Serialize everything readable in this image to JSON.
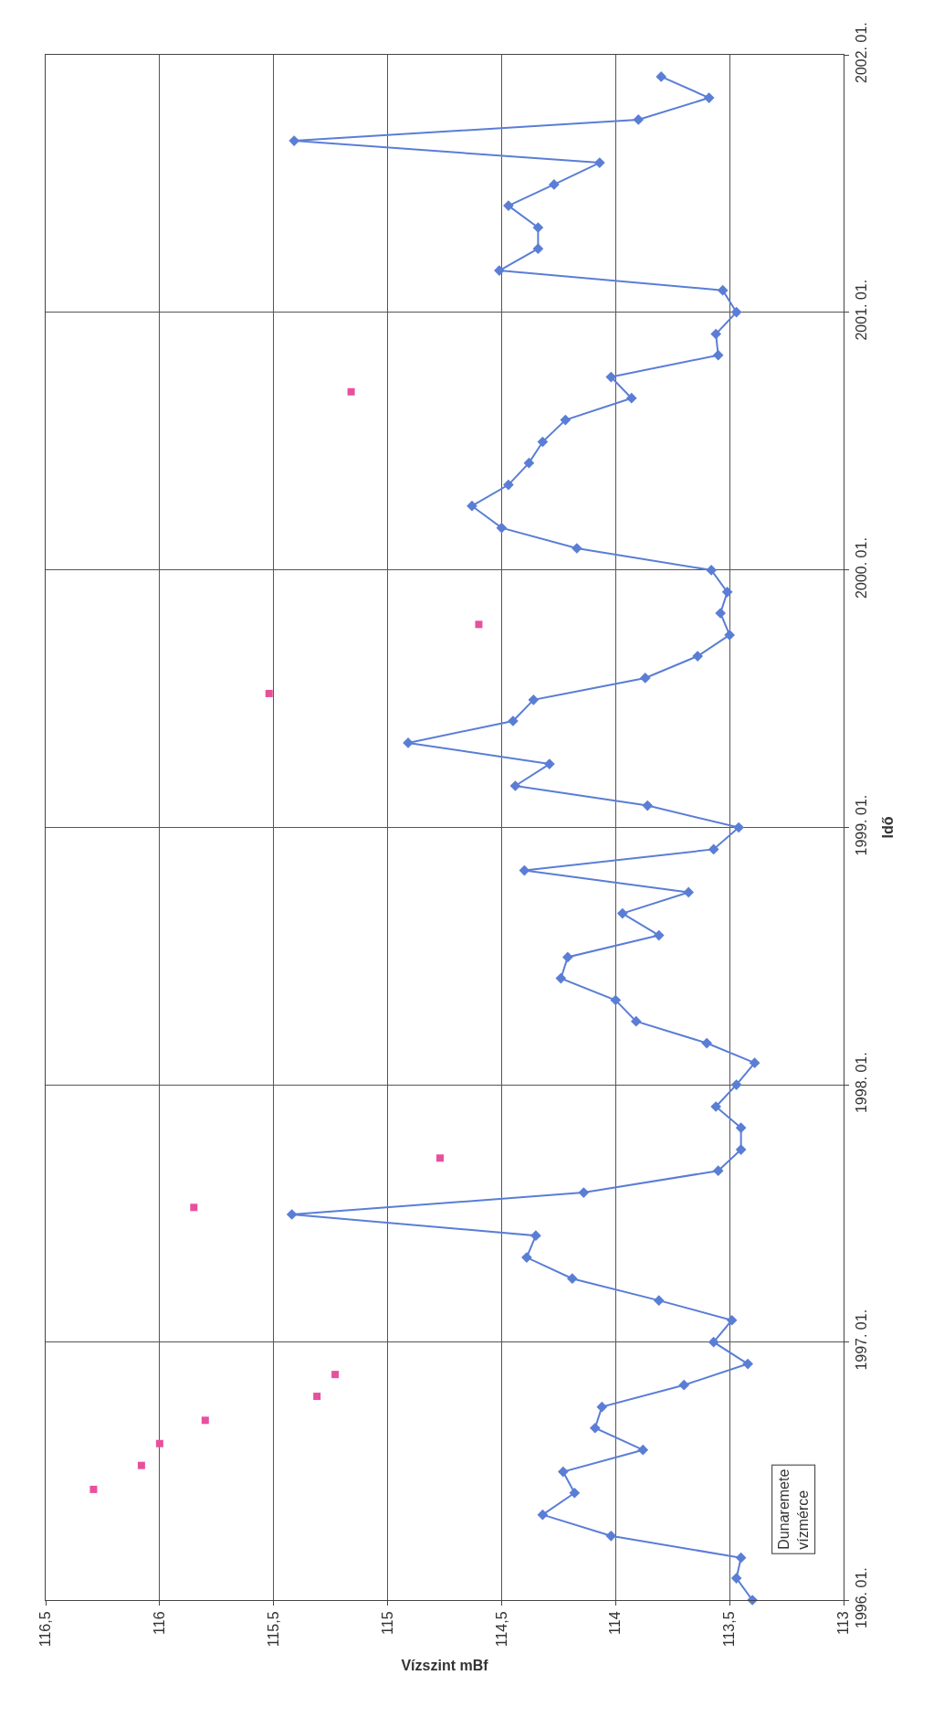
{
  "chart_data": {
    "type": "line",
    "orientation": "horizontal",
    "xlabel": "Vízszint mBf",
    "ylabel": "Idő",
    "xlim": [
      116.5,
      113
    ],
    "xticks": [
      {
        "value": 116.5,
        "label": "116,5"
      },
      {
        "value": 116,
        "label": "116"
      },
      {
        "value": 115.5,
        "label": "115,5"
      },
      {
        "value": 115,
        "label": "115"
      },
      {
        "value": 114.5,
        "label": "114,5"
      },
      {
        "value": 114,
        "label": "114"
      },
      {
        "value": 113.5,
        "label": "113,5"
      },
      {
        "value": 113,
        "label": "113"
      }
    ],
    "ylim": [
      "1996-01-01",
      "2002-01-01"
    ],
    "yticks": [
      {
        "value": "1996-01-01",
        "label": "1996. 01."
      },
      {
        "value": "1997-01-01",
        "label": "1997. 01."
      },
      {
        "value": "1998-01-01",
        "label": "1998. 01."
      },
      {
        "value": "1999-01-01",
        "label": "1999. 01."
      },
      {
        "value": "2000-01-01",
        "label": "2000. 01."
      },
      {
        "value": "2001-01-01",
        "label": "2001. 01."
      },
      {
        "value": "2002-01-01",
        "label": "2002. 01."
      }
    ],
    "grid": true,
    "annotations": [
      "Dunaremete\nvízmérce"
    ],
    "series": [
      {
        "marker": "diamond",
        "color": "#5a7ed6",
        "x": [
          "1996-01",
          "1996-02",
          "1996-03",
          "1996-04",
          "1996-05",
          "1996-06",
          "1996-07",
          "1996-08",
          "1996-09",
          "1996-10",
          "1996-11",
          "1996-12",
          "1997-01",
          "1997-02",
          "1997-03",
          "1997-04",
          "1997-05",
          "1997-06",
          "1997-07",
          "1997-08",
          "1997-09",
          "1997-10",
          "1997-11",
          "1997-12",
          "1998-01",
          "1998-02",
          "1998-03",
          "1998-04",
          "1998-05",
          "1998-06",
          "1998-07",
          "1998-08",
          "1998-09",
          "1998-10",
          "1998-11",
          "1998-12",
          "1999-01",
          "1999-02",
          "1999-03",
          "1999-04",
          "1999-05",
          "1999-06",
          "1999-07",
          "1999-08",
          "1999-09",
          "1999-10",
          "1999-11",
          "1999-12",
          "2000-01",
          "2000-02",
          "2000-03",
          "2000-04",
          "2000-05",
          "2000-06",
          "2000-07",
          "2000-08",
          "2000-09",
          "2000-10",
          "2000-11",
          "2000-12",
          "2001-01",
          "2001-02",
          "2001-03",
          "2001-04",
          "2001-05",
          "2001-06",
          "2001-07",
          "2001-08",
          "2001-09",
          "2001-10",
          "2001-11",
          "2001-12"
        ],
        "values": [
          113.4,
          113.47,
          113.45,
          114.02,
          114.32,
          114.18,
          114.23,
          113.88,
          114.09,
          114.06,
          113.7,
          113.42,
          113.57,
          113.49,
          113.81,
          114.19,
          114.39,
          114.35,
          115.42,
          114.14,
          113.55,
          113.45,
          113.45,
          113.56,
          113.47,
          113.39,
          113.6,
          113.91,
          114.0,
          114.24,
          114.21,
          113.81,
          113.97,
          113.68,
          114.4,
          113.57,
          113.46,
          113.86,
          114.44,
          114.29,
          114.91,
          114.45,
          114.36,
          113.87,
          113.64,
          113.5,
          113.54,
          113.51,
          113.58,
          114.17,
          114.5,
          114.63,
          114.47,
          114.38,
          114.32,
          114.22,
          113.93,
          114.02,
          113.55,
          113.56,
          113.47,
          113.53,
          114.51,
          114.34,
          114.34,
          114.47,
          114.27,
          114.07,
          115.41,
          113.9,
          113.59,
          113.8
        ]
      },
      {
        "type": "scatter",
        "marker": "square",
        "color": "#e8509e",
        "x": [
          "1996-06-06",
          "1996-07-10",
          "1996-08-10",
          "1996-09-12",
          "1996-10-16",
          "1996-11-16",
          "1997-07-11",
          "1997-09-19",
          "1999-07-10",
          "1999-10-16",
          "2000-09-10"
        ],
        "values": [
          116.29,
          116.08,
          116.0,
          115.8,
          115.31,
          115.23,
          115.85,
          114.77,
          115.52,
          114.6,
          115.16
        ]
      }
    ]
  }
}
